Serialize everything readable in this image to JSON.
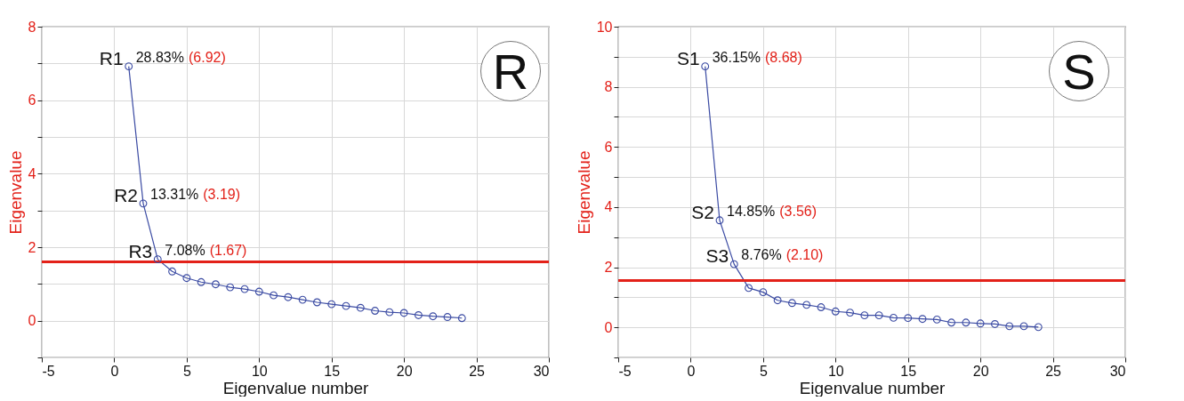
{
  "chart_data": [
    {
      "type": "line",
      "xlabel": "Eigenvalue number",
      "ylabel": "Eigenvalue",
      "x": [
        1,
        2,
        3,
        4,
        5,
        6,
        7,
        8,
        9,
        10,
        11,
        12,
        13,
        14,
        15,
        16,
        17,
        18,
        19,
        20,
        21,
        22,
        23,
        24
      ],
      "series": [
        {
          "color": "#3b4ba3",
          "values": [
            6.92,
            3.19,
            1.67,
            1.34,
            1.16,
            1.05,
            0.99,
            0.91,
            0.86,
            0.79,
            0.69,
            0.64,
            0.57,
            0.5,
            0.45,
            0.4,
            0.35,
            0.27,
            0.23,
            0.21,
            0.15,
            0.12,
            0.1,
            0.07
          ]
        }
      ],
      "xlim": [
        -5,
        30
      ],
      "xticks": [
        -5,
        0,
        5,
        10,
        15,
        20,
        25,
        30
      ],
      "ylim": [
        -1,
        8
      ],
      "yticks": [
        {
          "value": -1,
          "label": null
        },
        0,
        {
          "value": 1,
          "label": null
        },
        2,
        {
          "value": 3,
          "label": null
        },
        4,
        {
          "value": 5,
          "label": null
        },
        6,
        {
          "value": 7,
          "label": null
        },
        8
      ],
      "grid": true,
      "marker": "circle",
      "line_style": "solid",
      "ref_lines": [
        {
          "axis": "y",
          "value": 1.6,
          "color": "#e32119"
        }
      ],
      "annotations": [
        {
          "text": "R1",
          "x": 1,
          "y": 6.92
        },
        {
          "text": "28.83%",
          "x": 1,
          "y": 6.92
        },
        "(6.92)",
        {
          "text": "R2",
          "x": 2,
          "y": 3.19
        },
        {
          "text": "13.31%",
          "x": 2,
          "y": 3.19
        },
        "(3.19)",
        {
          "text": "R3",
          "x": 3,
          "y": 1.67
        },
        {
          "text": "7.08%",
          "x": 3,
          "y": 1.67
        },
        "(1.67)",
        "R"
      ]
    },
    {
      "type": "line",
      "xlabel": "Eigenvalue number",
      "ylabel": "Eigenvalue",
      "x": [
        1,
        2,
        3,
        4,
        5,
        6,
        7,
        8,
        9,
        10,
        11,
        12,
        13,
        14,
        15,
        16,
        17,
        18,
        19,
        20,
        21,
        22,
        23,
        24
      ],
      "series": [
        {
          "color": "#3b4ba3",
          "values": [
            8.68,
            3.56,
            2.1,
            1.31,
            1.17,
            0.9,
            0.81,
            0.75,
            0.67,
            0.53,
            0.49,
            0.4,
            0.4,
            0.32,
            0.31,
            0.28,
            0.26,
            0.16,
            0.16,
            0.13,
            0.11,
            0.04,
            0.04,
            0.01
          ]
        }
      ],
      "xlim": [
        -5,
        30
      ],
      "xticks": [
        -5,
        0,
        5,
        10,
        15,
        20,
        25,
        30
      ],
      "ylim": [
        -1,
        10
      ],
      "yticks": [
        {
          "value": -1,
          "label": null
        },
        0,
        {
          "value": 1,
          "label": null
        },
        2,
        {
          "value": 3,
          "label": null
        },
        4,
        {
          "value": 5,
          "label": null
        },
        6,
        {
          "value": 7,
          "label": null
        },
        8,
        {
          "value": 9,
          "label": null
        },
        10
      ],
      "grid": true,
      "marker": "circle",
      "line_style": "solid",
      "ref_lines": [
        {
          "axis": "y",
          "value": 1.56,
          "color": "#e32119"
        }
      ],
      "annotations": [
        {
          "text": "S1",
          "x": 1,
          "y": 8.68
        },
        {
          "text": "36.15%",
          "x": 1,
          "y": 8.68
        },
        "(8.68)",
        {
          "text": "S2",
          "x": 2,
          "y": 3.56
        },
        {
          "text": "14.85%",
          "x": 2,
          "y": 3.56
        },
        "(3.56)",
        {
          "text": "S3",
          "x": 3,
          "y": 2.1
        },
        {
          "text": "8.76%",
          "x": 3,
          "y": 2.1
        },
        "(2.10)",
        "S"
      ]
    }
  ]
}
